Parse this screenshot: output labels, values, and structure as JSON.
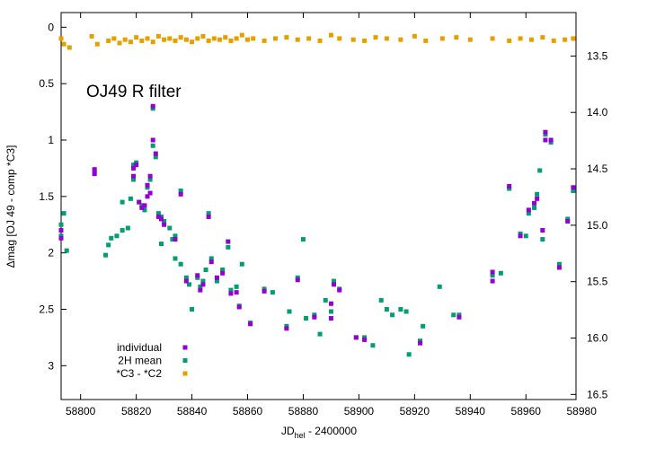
{
  "chart_data": {
    "type": "scatter",
    "annotation": "OJ49   R filter",
    "y_label": "Δmag [OJ 49 - comp *C3]",
    "x_label": {
      "main": "JD",
      "sub": "hel",
      "rest": " - 2400000"
    },
    "xlim": [
      58793,
      58978
    ],
    "xticks": [
      58800,
      58820,
      58840,
      58860,
      58880,
      58900,
      58920,
      58940,
      58960,
      58980
    ],
    "ylim": [
      3.3,
      -0.13
    ],
    "yticks": [
      0,
      0.5,
      1,
      1.5,
      2,
      2.5,
      3
    ],
    "y2lim": [
      16.545,
      13.115
    ],
    "y2ticks": [
      13.5,
      {
        "value": 14,
        "label": "14.0"
      },
      14.5,
      {
        "value": 15,
        "label": "15.0"
      },
      15.5,
      {
        "value": 16,
        "label": "16.0"
      },
      16.5
    ],
    "legend": "lower left",
    "series": [
      {
        "name": "individual",
        "color": "#9400d3",
        "x": [
          58793,
          58793,
          58805,
          58805,
          58819,
          58819,
          58820,
          58821,
          58822,
          58823,
          58824,
          58824,
          58825,
          58825,
          58826,
          58826,
          58827,
          58828,
          58829,
          58830,
          58834,
          58836,
          58838,
          58842,
          58843,
          58844,
          58846,
          58847,
          58849,
          58851,
          58853,
          58854,
          58856,
          58857,
          58861,
          58866,
          58874,
          58878,
          58884,
          58890,
          58890,
          58891,
          58893,
          58899,
          58902,
          58922,
          58936,
          58948,
          58948,
          58954,
          58958,
          58961,
          58963,
          58964,
          58966,
          58967,
          58967,
          58969,
          58972,
          58975,
          58977
        ],
        "values": [
          1.8,
          1.87,
          1.26,
          1.3,
          1.25,
          1.32,
          1.22,
          1.55,
          1.6,
          1.58,
          1.5,
          1.4,
          1.47,
          1.32,
          0.7,
          1.0,
          1.12,
          1.68,
          1.7,
          1.75,
          1.88,
          1.48,
          2.25,
          2.2,
          2.33,
          2.28,
          1.68,
          2.08,
          2.22,
          2.18,
          1.9,
          2.36,
          2.35,
          2.48,
          2.63,
          2.34,
          2.67,
          2.24,
          2.57,
          2.45,
          2.58,
          2.28,
          2.33,
          2.75,
          2.77,
          2.8,
          2.57,
          2.17,
          2.25,
          1.41,
          1.85,
          1.62,
          1.56,
          1.52,
          1.8,
          0.93,
          1.0,
          1.0,
          2.13,
          1.72,
          1.42
        ]
      },
      {
        "name": "2H mean",
        "color": "#009e73",
        "x": [
          58793,
          58793,
          58794,
          58795,
          58805,
          58809,
          58810,
          58811,
          58813,
          58815,
          58815,
          58817,
          58818,
          58819,
          58819,
          58820,
          58821,
          58822,
          58823,
          58824,
          58825,
          58826,
          58826,
          58827,
          58828,
          58829,
          58829,
          58830,
          58832,
          58833,
          58834,
          58834,
          58836,
          58836,
          58838,
          58839,
          58840,
          58842,
          58843,
          58844,
          58845,
          58846,
          58847,
          58849,
          58851,
          58853,
          58854,
          58856,
          58857,
          58858,
          58861,
          58866,
          58869,
          58874,
          58875,
          58878,
          58880,
          58881,
          58884,
          58886,
          58888,
          58890,
          58891,
          58893,
          58899,
          58902,
          58905,
          58908,
          58910,
          58912,
          58915,
          58917,
          58918,
          58922,
          58923,
          58929,
          58934,
          58936,
          58948,
          58951,
          58954,
          58958,
          58960,
          58961,
          58963,
          58964,
          58965,
          58966,
          58967,
          58969,
          58972,
          58975,
          58977
        ],
        "values": [
          1.75,
          1.85,
          1.65,
          1.98,
          1.28,
          2.02,
          1.93,
          1.87,
          1.85,
          1.8,
          1.55,
          1.78,
          1.52,
          1.22,
          1.35,
          1.2,
          1.55,
          1.58,
          1.62,
          1.42,
          1.35,
          0.72,
          1.05,
          1.15,
          1.65,
          1.68,
          1.92,
          1.72,
          1.78,
          1.88,
          1.85,
          2.05,
          1.45,
          2.1,
          2.22,
          2.28,
          2.5,
          2.22,
          2.3,
          2.25,
          2.15,
          1.65,
          2.05,
          2.25,
          2.15,
          1.95,
          2.33,
          2.3,
          2.47,
          2.1,
          2.62,
          2.32,
          2.35,
          2.65,
          2.52,
          2.22,
          1.88,
          2.58,
          2.55,
          2.72,
          2.42,
          2.52,
          2.25,
          2.32,
          2.75,
          2.75,
          2.82,
          2.42,
          2.5,
          2.55,
          2.5,
          2.52,
          2.9,
          2.78,
          2.65,
          2.3,
          2.55,
          2.55,
          2.2,
          2.18,
          1.43,
          1.83,
          1.85,
          1.65,
          1.6,
          1.48,
          1.27,
          1.88,
          0.95,
          1.02,
          2.1,
          1.7,
          1.45
        ]
      },
      {
        "name": "*C3 - *C2",
        "color": "#e69f00",
        "x": [
          58793,
          58794,
          58796,
          58804,
          58806,
          58810,
          58812,
          58814,
          58816,
          58818,
          58820,
          58822,
          58824,
          58826,
          58828,
          58830,
          58832,
          58834,
          58836,
          58838,
          58840,
          58842,
          58844,
          58846,
          58848,
          58850,
          58852,
          58854,
          58856,
          58858,
          58860,
          58862,
          58866,
          58870,
          58874,
          58878,
          58882,
          58886,
          58890,
          58893,
          58898,
          58902,
          58906,
          58910,
          58915,
          58920,
          58924,
          58930,
          58935,
          58940,
          58948,
          58954,
          58958,
          58962,
          58966,
          58970,
          58974,
          58977
        ],
        "values": [
          0.1,
          0.15,
          0.18,
          0.08,
          0.15,
          0.12,
          0.1,
          0.14,
          0.11,
          0.13,
          0.09,
          0.12,
          0.1,
          0.13,
          0.08,
          0.11,
          0.1,
          0.12,
          0.09,
          0.11,
          0.13,
          0.1,
          0.08,
          0.12,
          0.1,
          0.11,
          0.09,
          0.12,
          0.1,
          0.07,
          0.11,
          0.1,
          0.12,
          0.1,
          0.09,
          0.11,
          0.1,
          0.12,
          0.07,
          0.1,
          0.11,
          0.12,
          0.09,
          0.1,
          0.11,
          0.08,
          0.12,
          0.1,
          0.09,
          0.11,
          0.1,
          0.12,
          0.1,
          0.11,
          0.09,
          0.12,
          0.11,
          0.1
        ]
      }
    ]
  }
}
